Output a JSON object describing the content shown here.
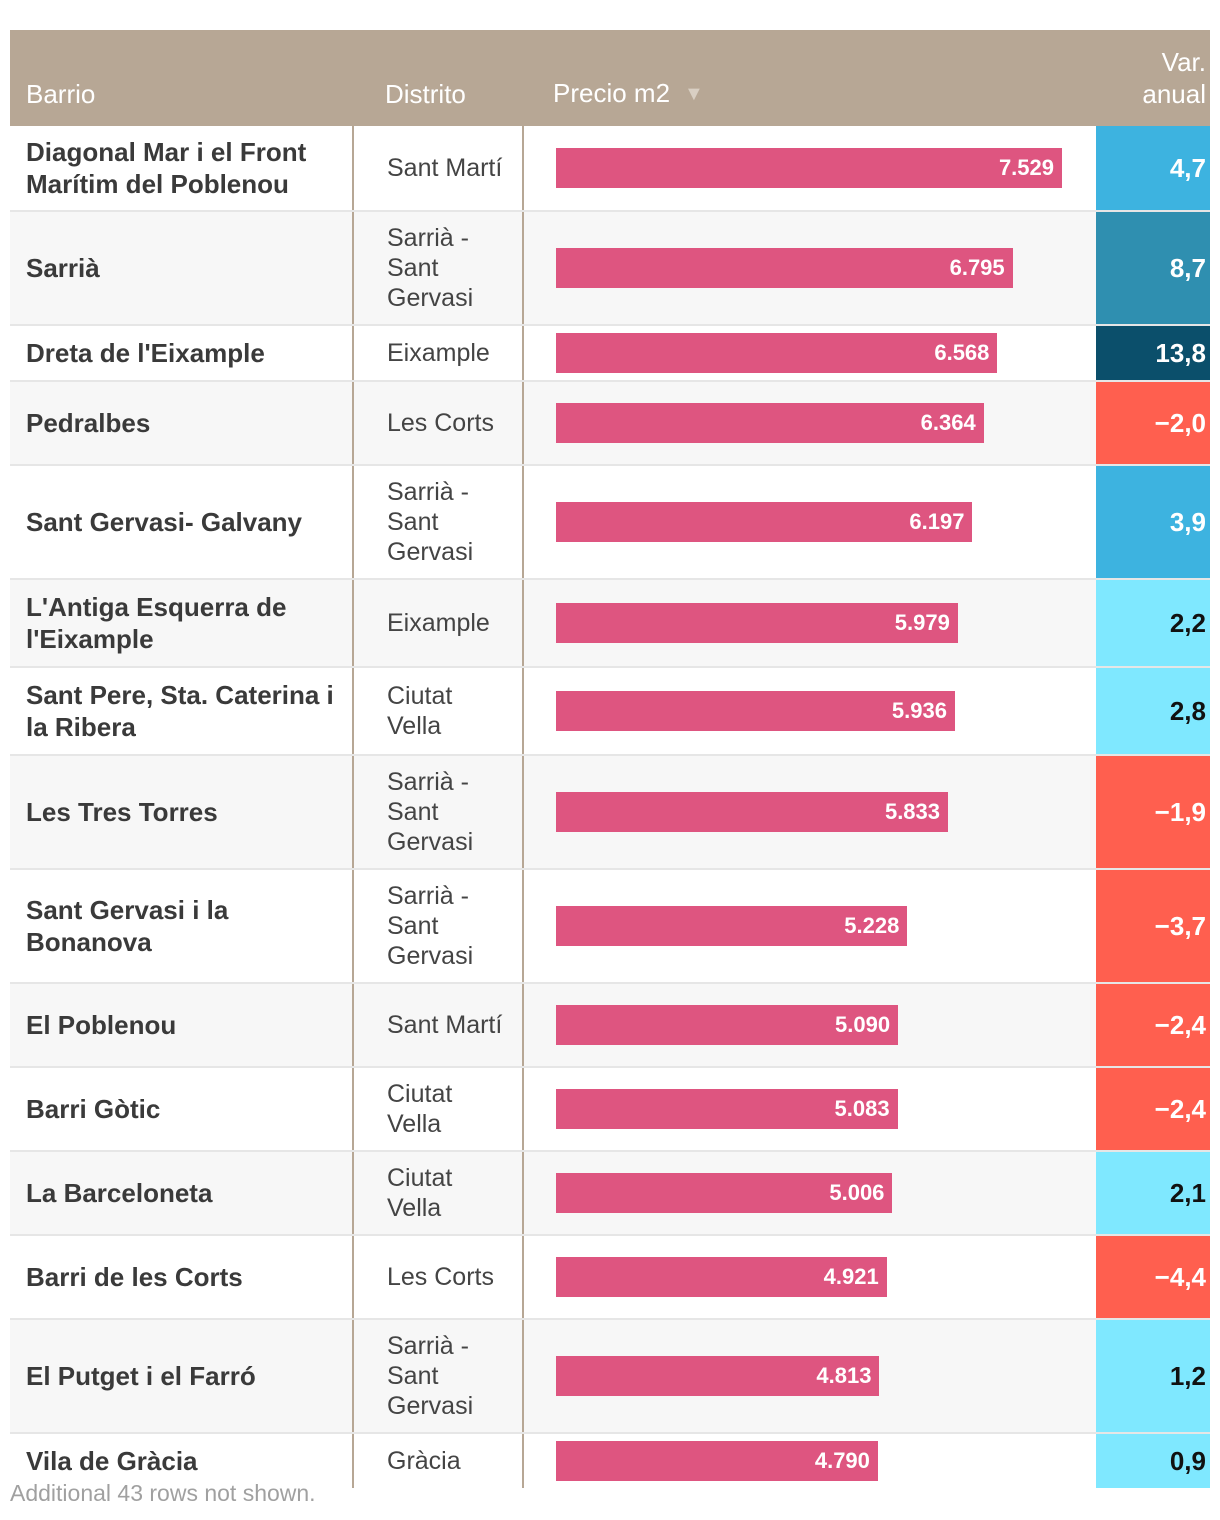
{
  "header": {
    "barrio": "Barrio",
    "distrito": "Distrito",
    "precio": "Precio m2",
    "sort_icon": "▼",
    "var_line1": "Var.",
    "var_line2": "anual"
  },
  "footer": "Additional 43 rows not shown.",
  "colors": {
    "header_bg": "#b7a795",
    "bar": "#de5580",
    "var_light_blue": "#7fe8ff",
    "var_blue": "#3db3e0",
    "var_mid_blue": "#2f8fb0",
    "var_dark_blue": "#0b4f6b",
    "var_red": "#ff5f4f"
  },
  "chart_data": {
    "type": "table",
    "title": "",
    "columns": [
      "Barrio",
      "Distrito",
      "Precio m2",
      "Var. anual"
    ],
    "xlim": [
      0,
      7529
    ],
    "rows": [
      {
        "barrio": "Diagonal Mar i el Front Marítim del Poblenou",
        "distrito": "Sant Martí",
        "precio": 7529,
        "precio_label": "7.529",
        "var": 4.7,
        "var_label": "4,7"
      },
      {
        "barrio": "Sarrià",
        "distrito": "Sarrià - Sant Gervasi",
        "precio": 6795,
        "precio_label": "6.795",
        "var": 8.7,
        "var_label": "8,7"
      },
      {
        "barrio": "Dreta de l'Eixample",
        "distrito": "Eixample",
        "precio": 6568,
        "precio_label": "6.568",
        "var": 13.8,
        "var_label": "13,8"
      },
      {
        "barrio": "Pedralbes",
        "distrito": "Les Corts",
        "precio": 6364,
        "precio_label": "6.364",
        "var": -2.0,
        "var_label": "−2,0"
      },
      {
        "barrio": "Sant Gervasi- Galvany",
        "distrito": "Sarrià - Sant Gervasi",
        "precio": 6197,
        "precio_label": "6.197",
        "var": 3.9,
        "var_label": "3,9"
      },
      {
        "barrio": "L'Antiga Esquerra de l'Eixample",
        "distrito": "Eixample",
        "precio": 5979,
        "precio_label": "5.979",
        "var": 2.2,
        "var_label": "2,2"
      },
      {
        "barrio": "Sant Pere, Sta. Caterina i la Ribera",
        "distrito": "Ciutat Vella",
        "precio": 5936,
        "precio_label": "5.936",
        "var": 2.8,
        "var_label": "2,8"
      },
      {
        "barrio": "Les Tres Torres",
        "distrito": "Sarrià - Sant Gervasi",
        "precio": 5833,
        "precio_label": "5.833",
        "var": -1.9,
        "var_label": "−1,9"
      },
      {
        "barrio": "Sant Gervasi i la Bonanova",
        "distrito": "Sarrià - Sant Gervasi",
        "precio": 5228,
        "precio_label": "5.228",
        "var": -3.7,
        "var_label": "−3,7"
      },
      {
        "barrio": "El Poblenou",
        "distrito": "Sant Martí",
        "precio": 5090,
        "precio_label": "5.090",
        "var": -2.4,
        "var_label": "−2,4"
      },
      {
        "barrio": "Barri Gòtic",
        "distrito": "Ciutat Vella",
        "precio": 5083,
        "precio_label": "5.083",
        "var": -2.4,
        "var_label": "−2,4"
      },
      {
        "barrio": "La Barceloneta",
        "distrito": "Ciutat Vella",
        "precio": 5006,
        "precio_label": "5.006",
        "var": 2.1,
        "var_label": "2,1"
      },
      {
        "barrio": "Barri de les Corts",
        "distrito": "Les Corts",
        "precio": 4921,
        "precio_label": "4.921",
        "var": -4.4,
        "var_label": "−4,4"
      },
      {
        "barrio": "El Putget i el Farró",
        "distrito": "Sarrià - Sant Gervasi",
        "precio": 4813,
        "precio_label": "4.813",
        "var": 1.2,
        "var_label": "1,2"
      },
      {
        "barrio": "Vila de Gràcia",
        "distrito": "Gràcia",
        "precio": 4790,
        "precio_label": "4.790",
        "var": 0.9,
        "var_label": "0,9"
      }
    ]
  }
}
